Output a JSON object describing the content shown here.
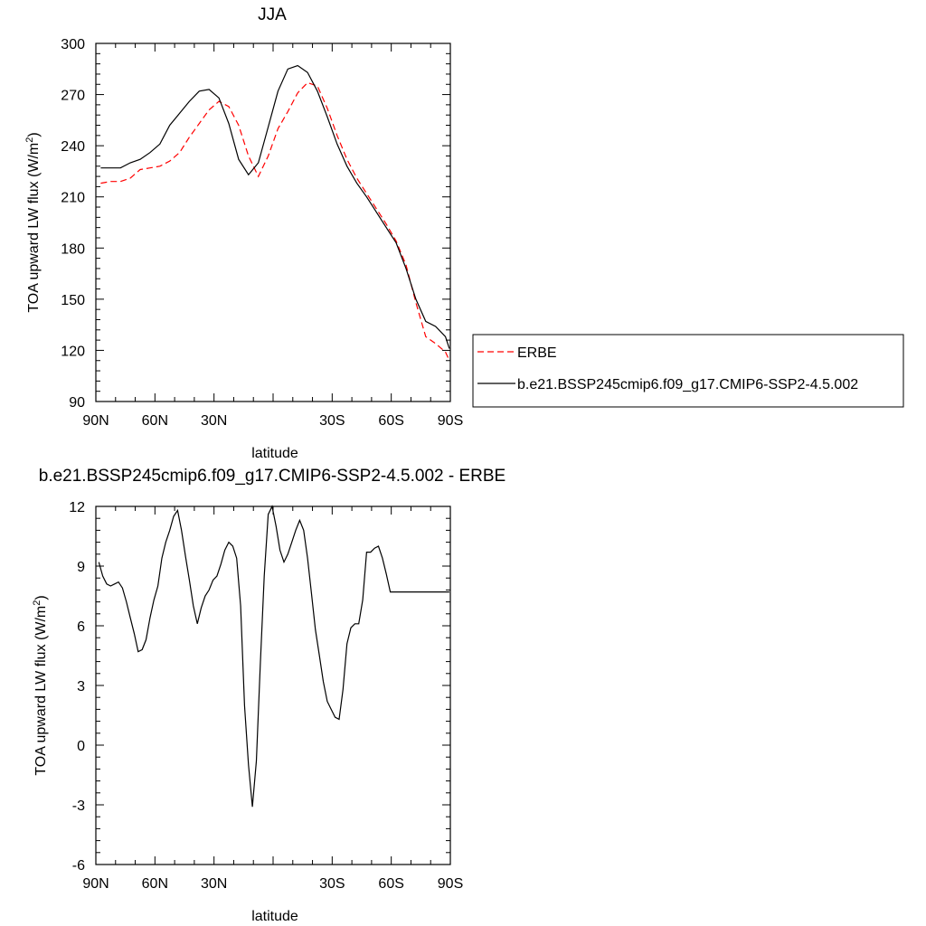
{
  "chart_data": [
    {
      "type": "line",
      "title": "JJA",
      "xlabel": "latitude",
      "ylabel": "TOA upward LW flux (W/m",
      "ylabel_sup": "2",
      "ylabel_tail": ")",
      "xlim": [
        -90,
        90
      ],
      "ylim": [
        90,
        300
      ],
      "xticks": [
        {
          "value": -90,
          "label": "90N"
        },
        {
          "value": -60,
          "label": "60N"
        },
        {
          "value": -30,
          "label": "30N"
        },
        {
          "value": 0,
          "label": ""
        },
        {
          "value": 30,
          "label": "30S"
        },
        {
          "value": 60,
          "label": "60S"
        },
        {
          "value": 90,
          "label": "90S"
        }
      ],
      "yticks": [
        90,
        120,
        150,
        180,
        210,
        240,
        270,
        300
      ],
      "legend": {
        "placement": "right",
        "entries": [
          "ERBE",
          "b.e21.BSSP245cmip6.f09_g17.CMIP6-SSP2-4.5.002"
        ]
      },
      "series": [
        {
          "name": "ERBE",
          "color": "#ff0000",
          "dash": "dashed",
          "x": [
            -87.5,
            -82.5,
            -77.5,
            -72.5,
            -67.5,
            -62.5,
            -57.5,
            -52.5,
            -47.5,
            -42.5,
            -37.5,
            -32.5,
            -27.5,
            -22.5,
            -17.5,
            -12.5,
            -7.5,
            -2.5,
            2.5,
            7.5,
            12.5,
            17.5,
            22.5,
            27.5,
            32.5,
            37.5,
            42.5,
            47.5,
            52.5,
            57.5,
            62.5,
            67.5,
            72.5,
            77.5,
            82.5,
            87.5,
            89.5
          ],
          "y": [
            218,
            219,
            219,
            221,
            226,
            227,
            228,
            231,
            236,
            245,
            253,
            261,
            266,
            263,
            252,
            234,
            222,
            234,
            250,
            260,
            271,
            277,
            275,
            262,
            246,
            232,
            221,
            212,
            203,
            194,
            184,
            170,
            148,
            128,
            124,
            119,
            114
          ]
        },
        {
          "name": "b.e21.BSSP245cmip6.f09_g17.CMIP6-SSP2-4.5.002",
          "color": "#000000",
          "dash": "solid",
          "x": [
            -87.5,
            -82.5,
            -77.5,
            -72.5,
            -67.5,
            -62.5,
            -57.5,
            -52.5,
            -47.5,
            -42.5,
            -37.5,
            -32.5,
            -27.5,
            -22.5,
            -17.5,
            -12.5,
            -7.5,
            -2.5,
            2.5,
            7.5,
            12.5,
            17.5,
            22.5,
            27.5,
            32.5,
            37.5,
            42.5,
            47.5,
            52.5,
            57.5,
            62.5,
            67.5,
            72.5,
            77.5,
            82.5,
            87.5,
            89.5
          ],
          "y": [
            227,
            227,
            227,
            230,
            232,
            236,
            241,
            252,
            259,
            266,
            272,
            273,
            268,
            253,
            232,
            223,
            230,
            251,
            272,
            285,
            287,
            283,
            272,
            257,
            241,
            228,
            218,
            210,
            201,
            192,
            183,
            168,
            150,
            137,
            134,
            128,
            121
          ]
        }
      ]
    },
    {
      "type": "line",
      "title": "b.e21.BSSP245cmip6.f09_g17.CMIP6-SSP2-4.5.002 - ERBE",
      "xlabel": "latitude",
      "ylabel": "TOA upward LW flux (W/m",
      "ylabel_sup": "2",
      "ylabel_tail": ")",
      "xlim": [
        -90,
        90
      ],
      "ylim": [
        -6,
        12
      ],
      "xticks": [
        {
          "value": -90,
          "label": "90N"
        },
        {
          "value": -60,
          "label": "60N"
        },
        {
          "value": -30,
          "label": "30N"
        },
        {
          "value": 0,
          "label": ""
        },
        {
          "value": 30,
          "label": "30S"
        },
        {
          "value": 60,
          "label": "60S"
        },
        {
          "value": 90,
          "label": "90S"
        }
      ],
      "yticks": [
        -6,
        -3,
        0,
        3,
        6,
        9,
        12
      ],
      "series": [
        {
          "color": "#000000",
          "dash": "solid",
          "x": [
            -88.5,
            -86.5,
            -84.5,
            -82.5,
            -80.5,
            -78.5,
            -76.5,
            -74.5,
            -72.5,
            -70.5,
            -68.5,
            -66.5,
            -64.5,
            -62.5,
            -60.5,
            -58.5,
            -56.5,
            -54.5,
            -52.5,
            -50.5,
            -48.5,
            -46.5,
            -44.5,
            -42.5,
            -40.5,
            -38.5,
            -36.5,
            -34.5,
            -32.5,
            -30.5,
            -28.5,
            -26.5,
            -24.5,
            -22.5,
            -20.5,
            -18.5,
            -16.5,
            -14.5,
            -12.5,
            -10.5,
            -8.5,
            -6.5,
            -4.5,
            -2.5,
            -0.5,
            1.5,
            3.5,
            5.5,
            7.5,
            9.5,
            11.5,
            13.5,
            15.5,
            17.5,
            19.5,
            21.5,
            23.5,
            25.5,
            27.5,
            29.5,
            31.5,
            33.5,
            35.5,
            37.5,
            39.5,
            41.5,
            43.5,
            45.5,
            47.5,
            49.5,
            51.5,
            53.5,
            55.5,
            57.5,
            59.5,
            61.5,
            63.5,
            65.5,
            67.5,
            69.5,
            71.5,
            73.5,
            75.5,
            77.5,
            79.5,
            81.5,
            83.5,
            85.5,
            87.5,
            89.5
          ],
          "y": [
            9.2,
            8.5,
            8.1,
            8.0,
            8.1,
            8.2,
            7.9,
            7.2,
            6.4,
            5.6,
            4.7,
            4.8,
            5.3,
            6.4,
            7.3,
            8.0,
            9.4,
            10.2,
            10.8,
            11.5,
            11.8,
            10.8,
            9.5,
            8.3,
            7.0,
            6.1,
            6.9,
            7.5,
            7.8,
            8.3,
            8.5,
            9.1,
            9.8,
            10.2,
            10.0,
            9.4,
            7.0,
            2.0,
            -1.0,
            -3.1,
            -0.8,
            4.0,
            8.5,
            11.6,
            12.0,
            11.0,
            9.8,
            9.2,
            9.6,
            10.2,
            10.8,
            11.3,
            10.8,
            9.4,
            7.6,
            5.8,
            4.5,
            3.2,
            2.2,
            1.8,
            1.4,
            1.3,
            2.8,
            5.1,
            5.9,
            6.1,
            6.1,
            7.3,
            9.7,
            9.7,
            9.9,
            10.0,
            9.4,
            8.6,
            7.7,
            7.7,
            7.7,
            7.7,
            7.7,
            7.7,
            7.7,
            7.7,
            7.7,
            7.7,
            7.7,
            7.7,
            7.7,
            7.7,
            7.7,
            7.7
          ]
        }
      ]
    }
  ]
}
